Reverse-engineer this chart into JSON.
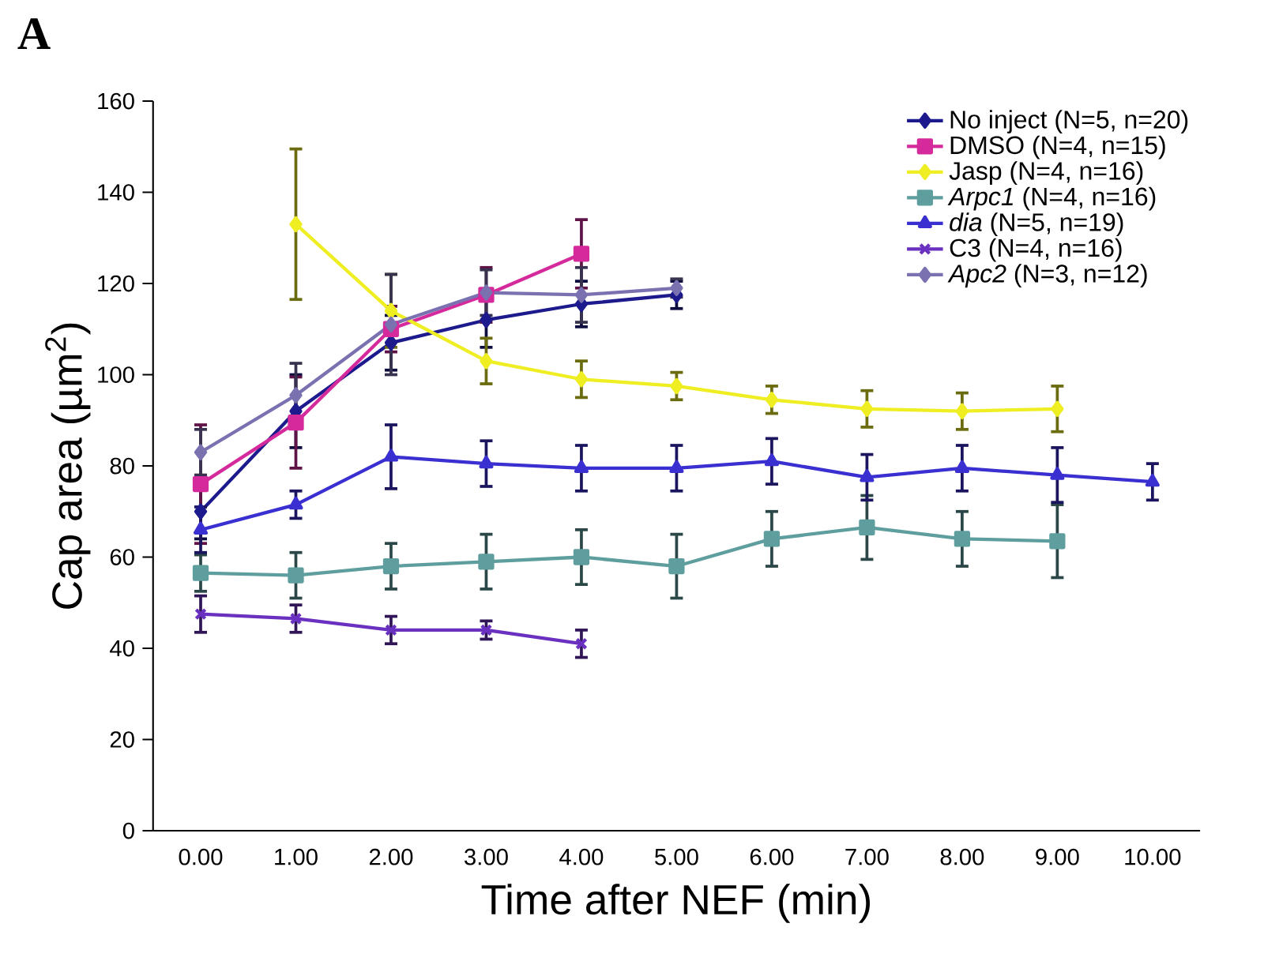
{
  "chart_data": {
    "type": "line",
    "categories": [
      "0.00",
      "1.00",
      "2.00",
      "3.00",
      "4.00",
      "5.00",
      "6.00",
      "7.00",
      "8.00",
      "9.00",
      "10.00"
    ],
    "xlabel": "Time after NEF (min)",
    "ylabel": "Cap area (µm$^{2}$)",
    "ylim": [
      0,
      160
    ],
    "yticks": [
      0,
      20,
      40,
      60,
      80,
      100,
      120,
      140,
      160
    ],
    "legend": "top right",
    "annotations": [
      "A"
    ],
    "series": [
      {
        "name": "No inject (N=5, n=20)",
        "color": "#1c1a8c",
        "marker": "diamond",
        "values": [
          70,
          92,
          107,
          112,
          115.5,
          117.5,
          null,
          null,
          null,
          null,
          null
        ],
        "errors": [
          6,
          8,
          6,
          6,
          5,
          3,
          null,
          null,
          null,
          null,
          null
        ]
      },
      {
        "name": "DMSO (N=4, n=15)",
        "color": "#d42a9c",
        "marker": "square",
        "values": [
          76,
          89.5,
          110,
          117.5,
          126.5,
          null,
          null,
          null,
          null,
          null,
          null
        ],
        "errors": [
          13,
          10,
          5,
          6,
          7.5,
          null,
          null,
          null,
          null,
          null,
          null
        ]
      },
      {
        "name": "Jasp (N=4, n=16)",
        "color": "#eeee22",
        "marker": "diamond",
        "values": [
          null,
          133,
          114,
          103,
          99,
          97.5,
          94.5,
          92.5,
          92,
          92.5,
          null
        ],
        "errors": [
          null,
          16.5,
          8,
          5,
          4,
          3,
          3,
          4,
          4,
          5,
          null
        ]
      },
      {
        "name": "*Arpc1* (N=4, n=16)",
        "color": "#5f9e9e",
        "marker": "square",
        "values": [
          56.5,
          56,
          58,
          59,
          60,
          58,
          64,
          66.5,
          64,
          63.5,
          null
        ],
        "errors": [
          4,
          5,
          5,
          6,
          6,
          7,
          6,
          7,
          6,
          8,
          null
        ]
      },
      {
        "name": "*dia* (N=5, n=19)",
        "color": "#3a2fd0",
        "marker": "triangle",
        "values": [
          66,
          71.5,
          82,
          80.5,
          79.5,
          79.5,
          81,
          77.5,
          79.5,
          78,
          76.5
        ],
        "errors": [
          5,
          3,
          7,
          5,
          5,
          5,
          5,
          5,
          5,
          6,
          4
        ]
      },
      {
        "name": "C3 (N=4, n=16)",
        "color": "#6a30c0",
        "marker": "cross",
        "values": [
          47.5,
          46.5,
          44,
          44,
          41,
          null,
          null,
          null,
          null,
          null,
          null
        ],
        "errors": [
          4,
          3,
          3,
          2,
          3,
          null,
          null,
          null,
          null,
          null,
          null
        ]
      },
      {
        "name": "*Apc2* (N=3, n=12)",
        "color": "#7a72b0",
        "marker": "diamond",
        "values": [
          83,
          95.5,
          111,
          118,
          117.5,
          119,
          null,
          null,
          null,
          null,
          null
        ],
        "errors": [
          5,
          7,
          11,
          5,
          6,
          2,
          null,
          null,
          null,
          null,
          null
        ]
      }
    ]
  }
}
